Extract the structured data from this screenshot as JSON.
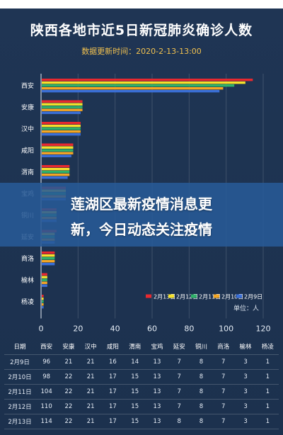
{
  "title": "陕西各地市近5日新冠肺炎确诊人数",
  "subtitle": "数据更新时间：2020-2-13-13:00",
  "overlay": {
    "line1": "莲湖区最新疫情消息更",
    "line2": "新，今日动态关注疫情"
  },
  "unit_label": "单位：人",
  "colors": {
    "2月13日": "#e8292f",
    "2月12日": "#f5e12a",
    "2月11日": "#2fb26a",
    "2月10日": "#f5a623",
    "2月9日": "#3a6fd8",
    "background": "#1e3452",
    "overlay": "#285a96"
  },
  "chart_data": {
    "type": "bar",
    "orientation": "horizontal",
    "categories": [
      "西安",
      "安康",
      "汉中",
      "咸阳",
      "渭南",
      "宝鸡",
      "铜川",
      "延安",
      "商洛",
      "榆林",
      "杨凌"
    ],
    "series": [
      {
        "name": "2月13日",
        "values": [
          114,
          22,
          21,
          17,
          15,
          13,
          8,
          8,
          7,
          3,
          1
        ]
      },
      {
        "name": "2月12日",
        "values": [
          110,
          22,
          21,
          17,
          15,
          13,
          8,
          7,
          7,
          3,
          1
        ]
      },
      {
        "name": "2月11日",
        "values": [
          104,
          22,
          21,
          17,
          15,
          13,
          8,
          7,
          7,
          3,
          1
        ]
      },
      {
        "name": "2月10日",
        "values": [
          98,
          22,
          21,
          17,
          15,
          13,
          8,
          7,
          7,
          3,
          1
        ]
      },
      {
        "name": "2月9日",
        "values": [
          96,
          21,
          21,
          16,
          14,
          13,
          8,
          7,
          7,
          3,
          1
        ]
      }
    ],
    "xlim": [
      0,
      120
    ],
    "xticks": [
      0,
      20,
      40,
      60,
      80,
      100,
      120
    ],
    "legend_position": "bottom-right"
  },
  "table": {
    "headers": [
      "日期",
      "西安",
      "安康",
      "汉中",
      "咸阳",
      "渭南",
      "宝鸡",
      "延安",
      "铜川",
      "商洛",
      "榆林",
      "杨凌"
    ],
    "rows": [
      [
        "2月9日",
        "96",
        "21",
        "21",
        "16",
        "14",
        "13",
        "7",
        "8",
        "7",
        "3",
        "1"
      ],
      [
        "2月10日",
        "98",
        "22",
        "21",
        "17",
        "15",
        "13",
        "7",
        "8",
        "7",
        "3",
        "1"
      ],
      [
        "2月11日",
        "104",
        "22",
        "21",
        "17",
        "15",
        "13",
        "7",
        "8",
        "7",
        "3",
        "1"
      ],
      [
        "2月12日",
        "110",
        "22",
        "21",
        "17",
        "15",
        "13",
        "7",
        "8",
        "7",
        "3",
        "1"
      ],
      [
        "2月13日",
        "114",
        "22",
        "21",
        "17",
        "15",
        "13",
        "8",
        "8",
        "7",
        "3",
        "1"
      ]
    ]
  }
}
